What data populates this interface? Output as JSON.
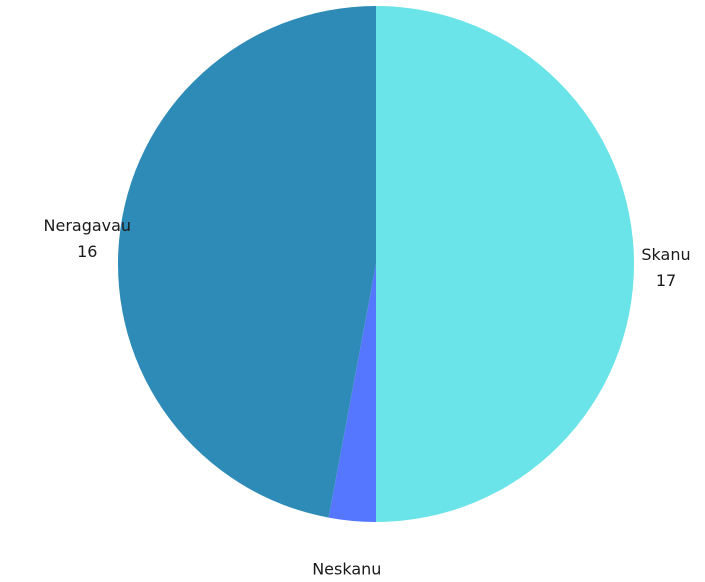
{
  "chart_data": {
    "type": "pie",
    "categories": [
      "Skanu",
      "Neskanu",
      "Neragavau"
    ],
    "values": [
      17,
      1,
      16
    ],
    "colors": [
      "#6ae4e8",
      "#5577ff",
      "#2e8bb8"
    ],
    "start_angle_deg": 0,
    "direction": "clockwise",
    "labels_show_value": true
  }
}
